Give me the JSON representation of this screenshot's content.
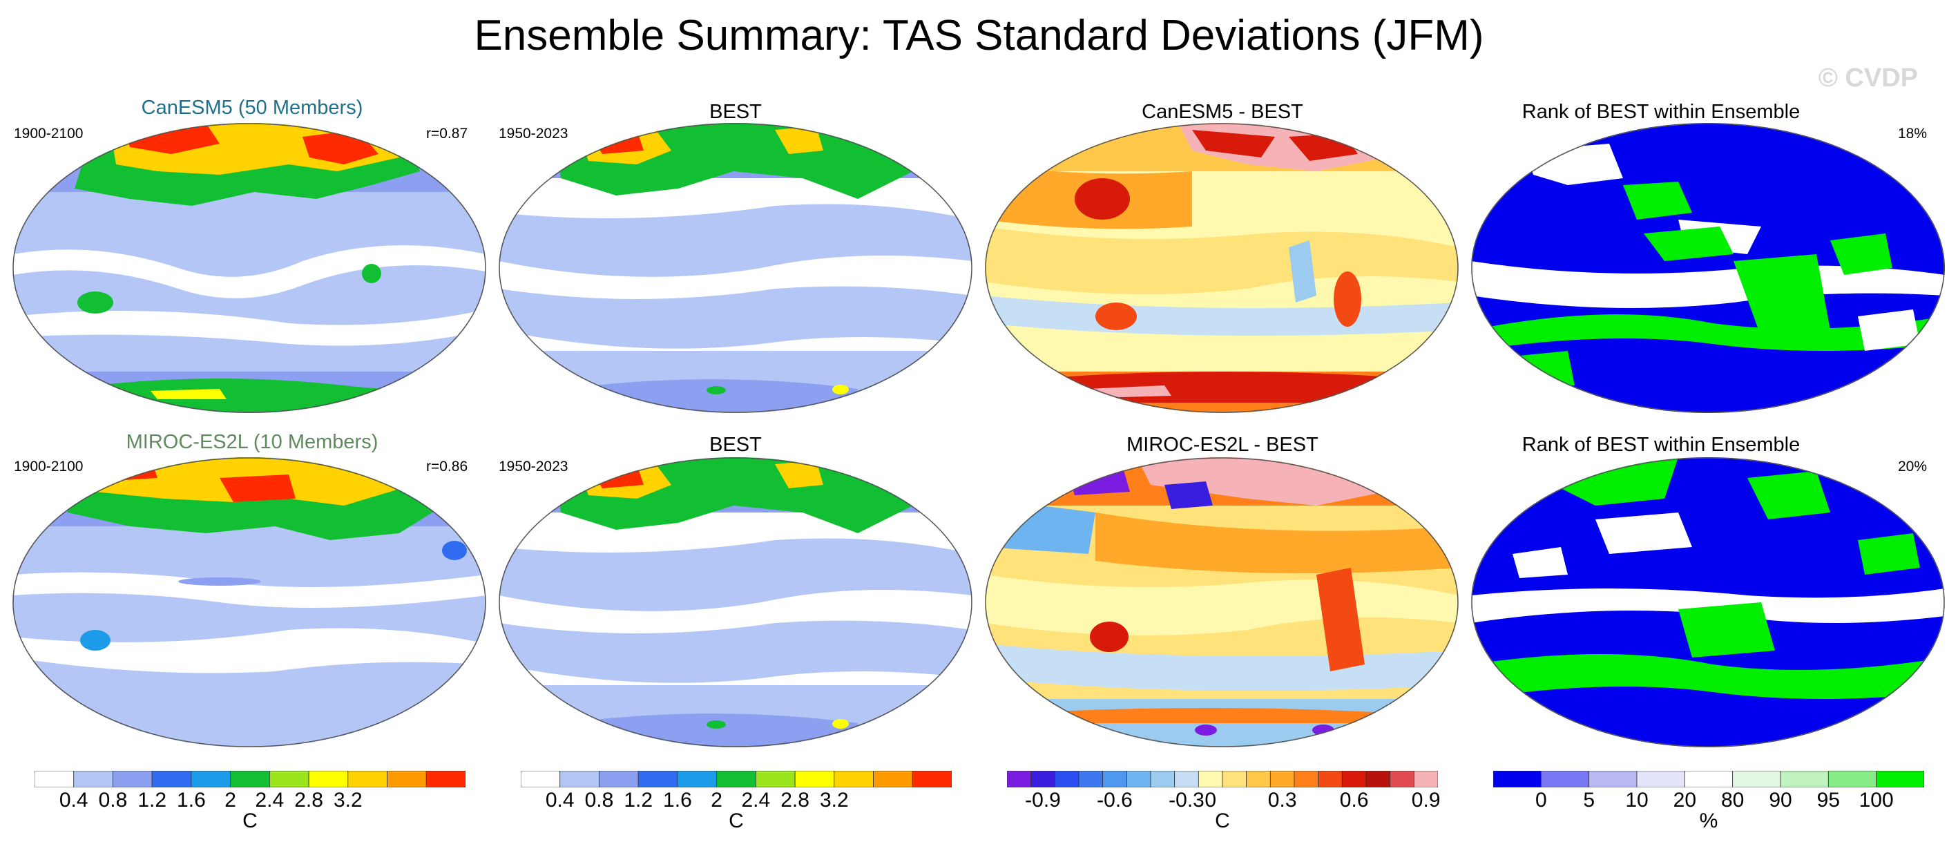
{
  "title": "Ensemble Summary: TAS Standard Deviations (JFM)",
  "watermark": "© CVDP",
  "rows": [
    {
      "model_title": "CanESM5 (50 Members)",
      "model_title_color": "#1f6f8b",
      "model_years": "1900-2100",
      "model_corr": "r=0.87",
      "obs_title": "BEST",
      "obs_years": "1950-2023",
      "diff_title": "CanESM5 - BEST",
      "rank_title": "Rank of BEST within Ensemble",
      "rank_pct": "18%"
    },
    {
      "model_title": "MIROC-ES2L (10 Members)",
      "model_title_color": "#5e8a5e",
      "model_years": "1900-2100",
      "model_corr": "r=0.86",
      "obs_title": "BEST",
      "obs_years": "1950-2023",
      "diff_title": "MIROC-ES2L - BEST",
      "rank_title": "Rank of BEST within Ensemble",
      "rank_pct": "20%"
    }
  ],
  "colorbars": [
    {
      "name": "model",
      "unit": "C",
      "colors": [
        "#ffffff",
        "#b3c6f5",
        "#8c9ff0",
        "#2f6cf0",
        "#1b9be8",
        "#12bf33",
        "#9be51e",
        "#ffff00",
        "#ffd200",
        "#ff9a00",
        "#ff2a00"
      ],
      "ticks": [
        "0.4",
        "0.8",
        "1.2",
        "1.6",
        "2",
        "2.4",
        "2.8",
        "3.2"
      ]
    },
    {
      "name": "obs",
      "unit": "C",
      "colors": [
        "#ffffff",
        "#b3c6f5",
        "#8c9ff0",
        "#2f6cf0",
        "#1b9be8",
        "#12bf33",
        "#9be51e",
        "#ffff00",
        "#ffd200",
        "#ff9a00",
        "#ff2a00"
      ],
      "ticks": [
        "0.4",
        "0.8",
        "1.2",
        "1.6",
        "2",
        "2.4",
        "2.8",
        "3.2"
      ]
    },
    {
      "name": "diff",
      "unit": "C",
      "colors": [
        "#7a1de0",
        "#3a1ee0",
        "#2a4ff0",
        "#3e78f0",
        "#4f98f0",
        "#6eb4f0",
        "#9ccbf0",
        "#c6dff5",
        "#fff9b0",
        "#ffe27a",
        "#ffc84a",
        "#ffa82a",
        "#ff7f1a",
        "#f24a12",
        "#d81a0a",
        "#b8120a",
        "#e04a50",
        "#f5b3b8"
      ],
      "ticks": [
        "-0.9",
        "-0.6",
        "-0.3",
        "0",
        "0.3",
        "0.6",
        "0.9"
      ]
    },
    {
      "name": "rank",
      "unit": "%",
      "colors": [
        "#0000ee",
        "#7878f5",
        "#b8b8f5",
        "#e4e4fb",
        "#ffffff",
        "#e2f8e2",
        "#bff2bf",
        "#86ec86",
        "#00ee00"
      ],
      "ticks": [
        "0",
        "5",
        "10",
        "20",
        "80",
        "90",
        "95",
        "100"
      ]
    }
  ]
}
